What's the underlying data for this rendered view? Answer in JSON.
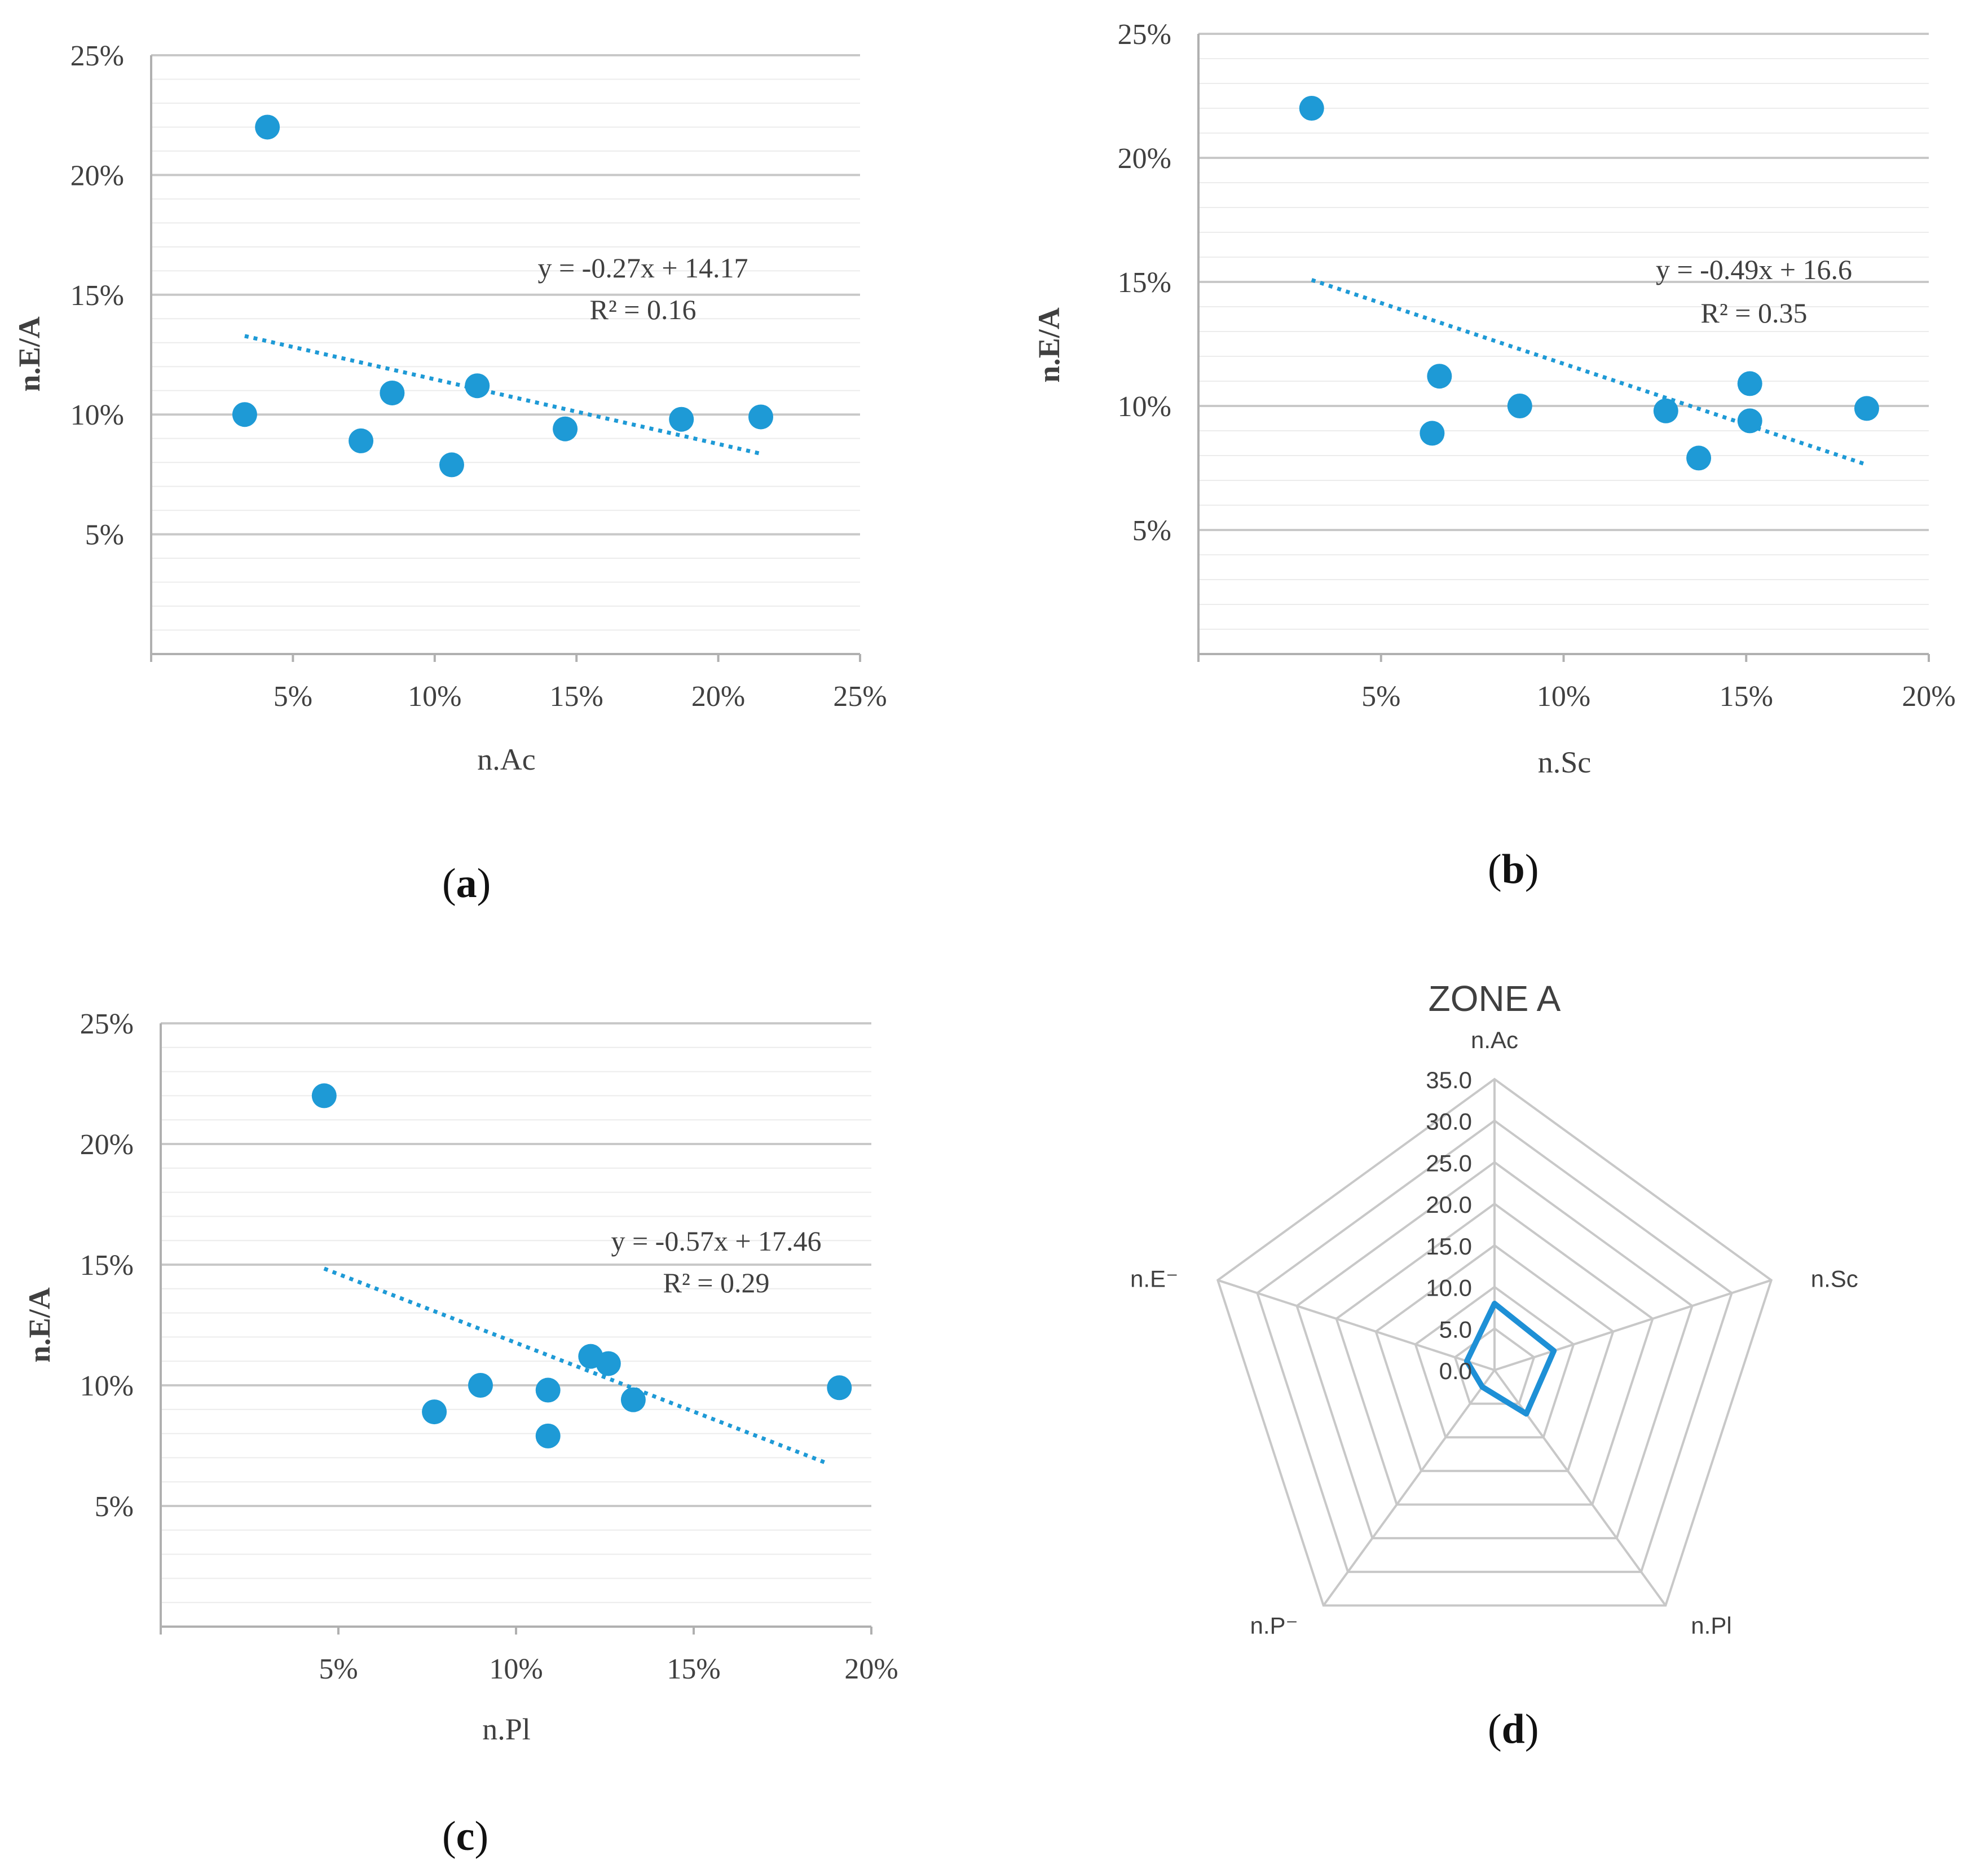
{
  "chart_data": [
    {
      "type": "scatter",
      "panel_label": "a",
      "xlabel": "n.Ac",
      "ylabel": "n.E/A",
      "xlim": [
        0,
        25
      ],
      "ylim": [
        0,
        25
      ],
      "x_ticks": [
        "5%",
        "10%",
        "15%",
        "20%",
        "25%"
      ],
      "y_ticks": [
        "5%",
        "10%",
        "15%",
        "20%",
        "25%"
      ],
      "points": [
        {
          "x": 4.1,
          "y": 22.0
        },
        {
          "x": 3.3,
          "y": 10.0
        },
        {
          "x": 7.4,
          "y": 8.9
        },
        {
          "x": 8.5,
          "y": 10.9
        },
        {
          "x": 10.6,
          "y": 7.9
        },
        {
          "x": 11.5,
          "y": 11.2
        },
        {
          "x": 14.6,
          "y": 9.4
        },
        {
          "x": 18.7,
          "y": 9.8
        },
        {
          "x": 21.5,
          "y": 9.9
        }
      ],
      "trendline": {
        "slope": -0.27,
        "intercept": 14.17,
        "x_range": [
          3.3,
          21.5
        ]
      },
      "equation": "y = -0.27x + 14.17",
      "r2": "R² = 0.16",
      "grid": true,
      "series_color": "#1e9ad6"
    },
    {
      "type": "scatter",
      "panel_label": "b",
      "xlabel": "n.Sc",
      "ylabel": "n.E/A",
      "xlim": [
        0,
        20
      ],
      "ylim": [
        0,
        25
      ],
      "x_ticks": [
        "5%",
        "10%",
        "15%",
        "20%"
      ],
      "y_ticks": [
        "5%",
        "10%",
        "15%",
        "20%",
        "25%"
      ],
      "points": [
        {
          "x": 3.1,
          "y": 22.0
        },
        {
          "x": 6.4,
          "y": 8.9
        },
        {
          "x": 6.6,
          "y": 11.2
        },
        {
          "x": 8.8,
          "y": 10.0
        },
        {
          "x": 12.8,
          "y": 9.8
        },
        {
          "x": 13.7,
          "y": 7.9
        },
        {
          "x": 15.1,
          "y": 10.9
        },
        {
          "x": 15.1,
          "y": 9.4
        },
        {
          "x": 18.3,
          "y": 9.9
        }
      ],
      "trendline": {
        "slope": -0.49,
        "intercept": 16.6,
        "x_range": [
          3.1,
          18.3
        ]
      },
      "equation": "y = -0.49x + 16.6",
      "r2": "R² = 0.35",
      "grid": true,
      "series_color": "#1e9ad6"
    },
    {
      "type": "scatter",
      "panel_label": "c",
      "xlabel": "n.Pl",
      "ylabel": "n.E/A",
      "xlim": [
        0,
        20
      ],
      "ylim": [
        0,
        25
      ],
      "x_ticks": [
        "5%",
        "10%",
        "15%",
        "20%"
      ],
      "y_ticks": [
        "5%",
        "10%",
        "15%",
        "20%",
        "25%"
      ],
      "points": [
        {
          "x": 4.6,
          "y": 22.0
        },
        {
          "x": 7.7,
          "y": 8.9
        },
        {
          "x": 9.0,
          "y": 10.0
        },
        {
          "x": 10.9,
          "y": 9.8
        },
        {
          "x": 10.9,
          "y": 7.9
        },
        {
          "x": 12.1,
          "y": 11.2
        },
        {
          "x": 12.6,
          "y": 10.9
        },
        {
          "x": 13.3,
          "y": 9.4
        },
        {
          "x": 19.1,
          "y": 9.9
        }
      ],
      "trendline": {
        "slope": -0.57,
        "intercept": 17.46,
        "x_range": [
          4.6,
          18.8
        ]
      },
      "equation": "y = -0.57x + 17.46",
      "r2": "R² = 0.29",
      "grid": true,
      "series_color": "#1e9ad6"
    },
    {
      "type": "radar",
      "panel_label": "d",
      "title": "ZONE A",
      "axes": [
        "n.Ac",
        "n.Sc",
        "n.Pl",
        "n.P⁻",
        "n.E⁻"
      ],
      "ring_labels": [
        "0.0",
        "5.0",
        "10.0",
        "15.0",
        "20.0",
        "25.0",
        "30.0",
        "35.0"
      ],
      "rlim": [
        0,
        35
      ],
      "values": [
        8.0,
        7.5,
        6.5,
        2.5,
        3.5
      ],
      "series_color": "#1e90d6"
    }
  ]
}
